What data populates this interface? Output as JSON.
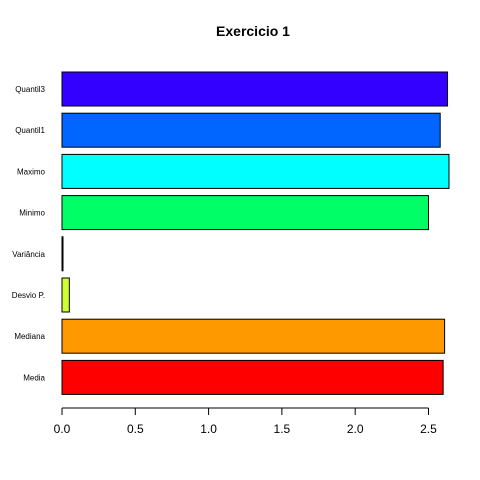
{
  "chart_data": {
    "type": "bar",
    "orientation": "horizontal",
    "title": "Exercicio 1",
    "xlabel": "",
    "ylabel": "",
    "categories": [
      "Media",
      "Mediana",
      "Desvio P.",
      "Variância",
      "Minimo",
      "Maximo",
      "Quantil1",
      "Quantil3"
    ],
    "values": [
      2.6,
      2.61,
      0.05,
      0.003,
      2.5,
      2.64,
      2.58,
      2.63
    ],
    "colors": [
      "#FF0000",
      "#FF9900",
      "#CCFF33",
      "#000000",
      "#00FF66",
      "#00FFFF",
      "#0066FF",
      "#3300FF"
    ],
    "xlim": [
      0,
      2.64
    ],
    "xticks": [
      0.0,
      0.5,
      1.0,
      1.5,
      2.0,
      2.5
    ],
    "xtick_labels": [
      "0.0",
      "0.5",
      "1.0",
      "1.5",
      "2.0",
      "2.5"
    ],
    "grid": false,
    "legend": "none"
  }
}
